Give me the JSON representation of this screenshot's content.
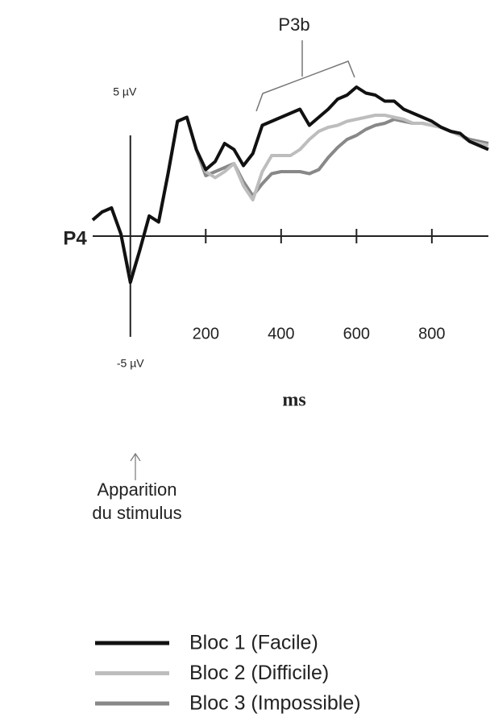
{
  "chart_data": {
    "type": "line",
    "annotations": {
      "channel": "P4",
      "component": "P3b",
      "onset": [
        "Apparition",
        "du stimulus"
      ]
    },
    "x_label": "ms",
    "x": [
      -100,
      -75,
      -50,
      -25,
      0,
      25,
      50,
      75,
      100,
      125,
      150,
      175,
      200,
      225,
      250,
      275,
      300,
      325,
      350,
      375,
      400,
      425,
      450,
      475,
      500,
      525,
      550,
      575,
      600,
      625,
      650,
      675,
      700,
      725,
      750,
      775,
      800,
      825,
      850,
      875,
      900,
      925,
      950
    ],
    "xlim": [
      -100,
      950
    ],
    "xticks": [
      200,
      400,
      600,
      800
    ],
    "ylim": [
      -6,
      8
    ],
    "yticks": [
      {
        "value": 5,
        "label": "5 µV"
      },
      {
        "value": -5,
        "label": "-5 µV"
      }
    ],
    "series": [
      {
        "name": "Bloc 1 (Facile)",
        "color": "#111111",
        "values": [
          0.8,
          1.2,
          1.4,
          0.1,
          -2.3,
          -0.7,
          1.0,
          0.7,
          3.1,
          5.7,
          5.9,
          4.3,
          3.3,
          3.7,
          4.6,
          4.3,
          3.5,
          4.1,
          5.5,
          5.7,
          5.9,
          6.1,
          6.3,
          5.5,
          5.9,
          6.3,
          6.8,
          7.0,
          7.4,
          7.1,
          7.0,
          6.7,
          6.7,
          6.3,
          6.1,
          5.9,
          5.7,
          5.4,
          5.2,
          5.1,
          4.7,
          4.5,
          4.3
        ]
      },
      {
        "name": "Bloc 2 (Difficile)",
        "color": "#bdbdbd",
        "values": [
          0.8,
          1.2,
          1.4,
          0.1,
          -2.3,
          -0.7,
          1.0,
          0.7,
          3.1,
          5.7,
          5.9,
          4.3,
          3.2,
          2.9,
          3.2,
          3.6,
          2.5,
          1.8,
          3.2,
          4.0,
          4.0,
          4.0,
          4.3,
          4.8,
          5.2,
          5.4,
          5.5,
          5.7,
          5.8,
          5.9,
          6.0,
          6.0,
          5.9,
          5.8,
          5.6,
          5.6,
          5.5,
          5.4,
          5.2,
          5.0,
          4.7,
          4.6,
          4.5
        ]
      },
      {
        "name": "Bloc 3 (Impossible)",
        "color": "#888888",
        "values": [
          0.8,
          1.2,
          1.4,
          0.1,
          -2.2,
          -0.7,
          1.0,
          0.7,
          3.1,
          5.7,
          5.9,
          4.3,
          3.0,
          3.2,
          3.4,
          3.6,
          2.7,
          2.0,
          2.6,
          3.1,
          3.2,
          3.2,
          3.2,
          3.1,
          3.3,
          3.9,
          4.4,
          4.8,
          5.0,
          5.3,
          5.5,
          5.6,
          5.8,
          5.7,
          5.6,
          5.6,
          5.5,
          5.4,
          5.2,
          5.0,
          4.8,
          4.7,
          4.6
        ]
      }
    ]
  }
}
